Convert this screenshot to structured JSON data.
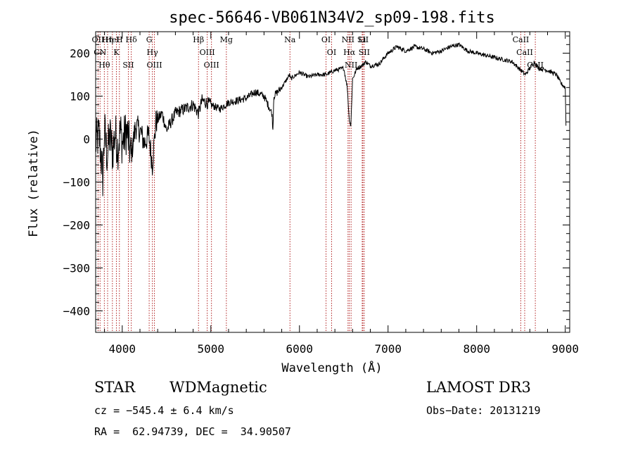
{
  "chart_data": {
    "type": "line",
    "title": "spec-56646-VB061N34V2_sp09-198.fits",
    "xlabel": "Wavelength (Å)",
    "ylabel": "Flux (relative)",
    "xlim": [
      3700,
      9050
    ],
    "ylim": [
      -450,
      250
    ],
    "xticks": [
      4000,
      5000,
      6000,
      7000,
      8000,
      9000
    ],
    "yticks": [
      -400,
      -300,
      -200,
      -100,
      0,
      100,
      200
    ],
    "series": [
      {
        "name": "spectrum",
        "x": [
          3700,
          3740,
          3780,
          3800,
          3830,
          3860,
          3890,
          3920,
          3950,
          3980,
          4000,
          4050,
          4100,
          4150,
          4200,
          4250,
          4300,
          4340,
          4380,
          4450,
          4500,
          4600,
          4700,
          4800,
          4861,
          4900,
          5000,
          5100,
          5200,
          5300,
          5400,
          5500,
          5600,
          5690,
          5700,
          5710,
          5800,
          5890,
          5900,
          6000,
          6100,
          6200,
          6300,
          6400,
          6500,
          6540,
          6560,
          6580,
          6600,
          6650,
          6700,
          6750,
          6800,
          6900,
          7000,
          7100,
          7200,
          7300,
          7400,
          7500,
          7600,
          7700,
          7800,
          7900,
          8000,
          8100,
          8200,
          8300,
          8400,
          8500,
          8550,
          8600,
          8650,
          8700,
          8800,
          8900,
          8950,
          9000,
          9010
        ],
        "y": [
          -10,
          10,
          -90,
          20,
          -40,
          10,
          -30,
          15,
          -20,
          20,
          -10,
          20,
          -40,
          30,
          20,
          -10,
          10,
          -60,
          40,
          60,
          20,
          60,
          70,
          80,
          60,
          90,
          80,
          70,
          85,
          90,
          95,
          110,
          100,
          60,
          20,
          100,
          120,
          150,
          140,
          155,
          145,
          150,
          150,
          160,
          165,
          120,
          50,
          30,
          140,
          165,
          170,
          180,
          170,
          175,
          200,
          215,
          205,
          215,
          210,
          200,
          205,
          215,
          220,
          205,
          200,
          195,
          190,
          185,
          180,
          160,
          150,
          165,
          180,
          165,
          160,
          150,
          130,
          120,
          10
        ],
        "color": "#000000"
      }
    ],
    "reference_lines": [
      {
        "label": "Hθ",
        "x": 3798
      },
      {
        "label": "Hη",
        "x": 3835
      },
      {
        "label": "OII",
        "x": 3727
      },
      {
        "label": "CN",
        "x": 3750
      },
      {
        "label": "K",
        "x": 3934
      },
      {
        "label": "H",
        "x": 3968
      },
      {
        "label": "HeI",
        "x": 3889
      },
      {
        "label": "Hδ",
        "x": 4102
      },
      {
        "label": "SII",
        "x": 4069
      },
      {
        "label": "OIII",
        "x": 4363
      },
      {
        "label": "Hγ",
        "x": 4340
      },
      {
        "label": "G",
        "x": 4304
      },
      {
        "label": "Hβ",
        "x": 4861
      },
      {
        "label": "OIII",
        "x": 4959
      },
      {
        "label": "OIII",
        "x": 5007
      },
      {
        "label": "Mg",
        "x": 5175
      },
      {
        "label": "Na",
        "x": 5893
      },
      {
        "label": "OI",
        "x": 6300
      },
      {
        "label": "OI",
        "x": 6363
      },
      {
        "label": "Hα",
        "x": 6563
      },
      {
        "label": "NII",
        "x": 6583
      },
      {
        "label": "NII",
        "x": 6548
      },
      {
        "label": "SII",
        "x": 6716
      },
      {
        "label": "SII",
        "x": 6731
      },
      {
        "label": "Li",
        "x": 6708
      },
      {
        "label": "CaII",
        "x": 8498
      },
      {
        "label": "CaII",
        "x": 8542
      },
      {
        "label": "CaII",
        "x": 8662
      }
    ]
  },
  "info": {
    "class": "STAR",
    "subclass": "WDMagnetic",
    "survey": "LAMOST DR3",
    "cz": "cz = −545.4 ± 6.4 km/s",
    "obs_date": "Obs−Date: 20131219",
    "radec": "RA =  62.94739, DEC =  34.90507"
  },
  "colors": {
    "spectrum": "#000000",
    "reference": "#b22222",
    "axes": "#000000"
  }
}
